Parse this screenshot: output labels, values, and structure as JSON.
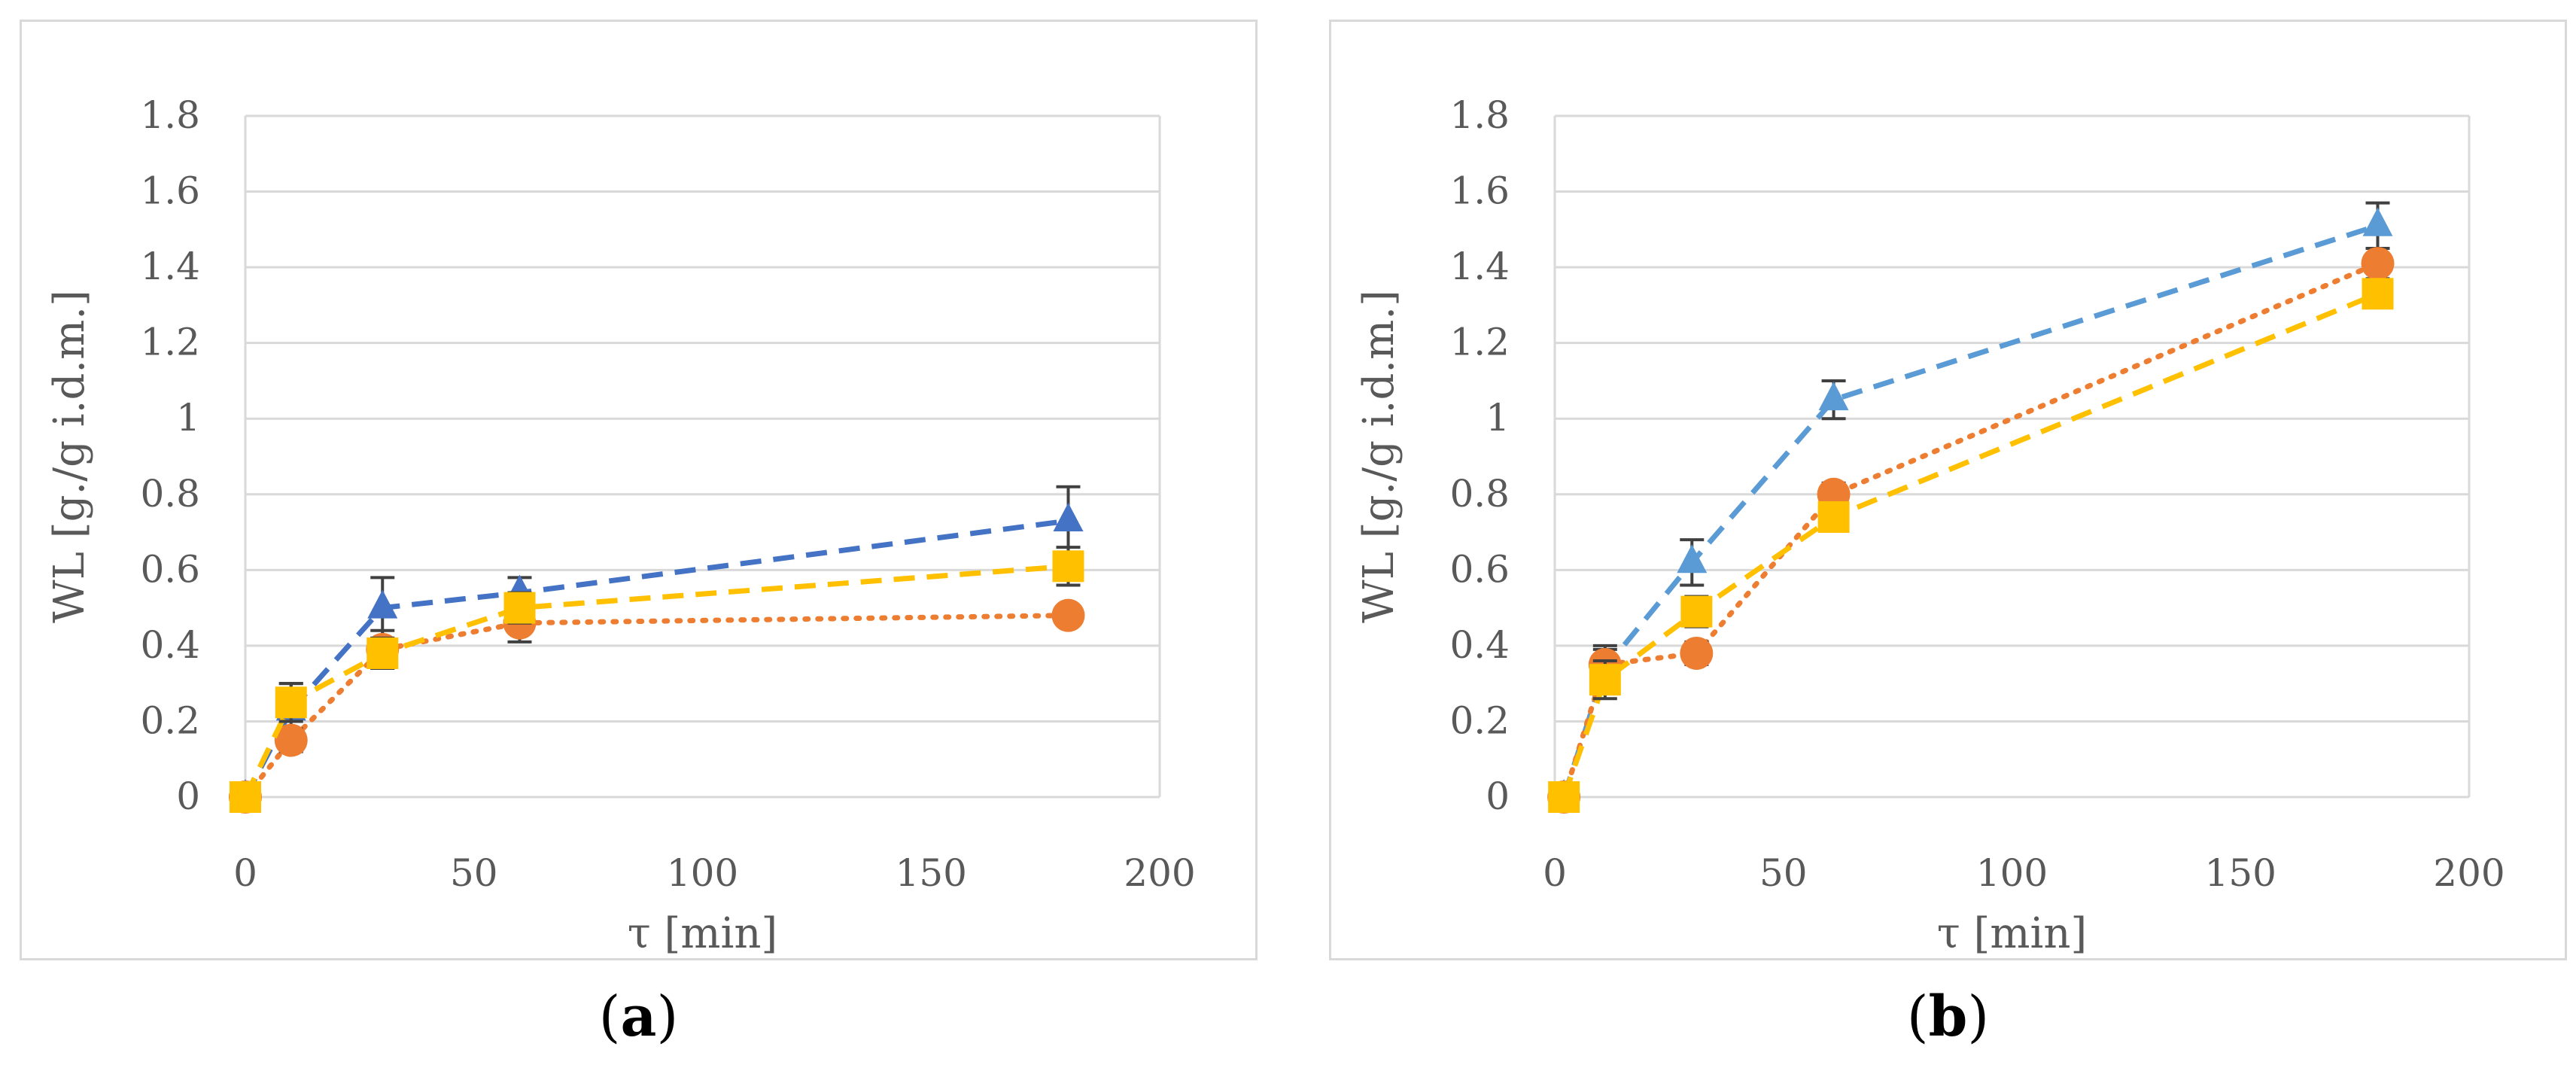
{
  "chart_data": [
    {
      "type": "line",
      "panel_label": "a",
      "caption_prefix": "(",
      "caption_suffix": ")",
      "xlabel": "τ [min]",
      "ylabel": "WL [g./g i.d.m.]",
      "xlim": [
        0,
        200
      ],
      "ylim": [
        0,
        1.8
      ],
      "xticks": [
        "0",
        "50",
        "100",
        "150",
        "200"
      ],
      "yticks": [
        "0",
        "0.2",
        "0.4",
        "0.6",
        "0.8",
        "1",
        "1.2",
        "1.4",
        "1.6",
        "1.8"
      ],
      "grid": true,
      "series": [
        {
          "name": "triangle-series",
          "marker": "triangle",
          "line": "dash",
          "color": "#4472c4",
          "x": [
            0,
            10,
            30,
            60,
            180
          ],
          "y": [
            0,
            0.23,
            0.5,
            0.54,
            0.73
          ],
          "err": [
            0,
            0.07,
            0.08,
            0.04,
            0.09
          ]
        },
        {
          "name": "circle-series",
          "marker": "circle",
          "line": "dot",
          "color": "#ed7d31",
          "x": [
            0,
            10,
            30,
            60,
            180
          ],
          "y": [
            0,
            0.15,
            0.39,
            0.46,
            0.48
          ],
          "err": [
            0,
            0.03,
            0.05,
            0.05,
            0.02
          ]
        },
        {
          "name": "square-series",
          "marker": "square",
          "line": "dash",
          "color": "#ffc000",
          "x": [
            0,
            10,
            30,
            60,
            180
          ],
          "y": [
            0,
            0.25,
            0.38,
            0.5,
            0.61
          ],
          "err": [
            0,
            0.05,
            0.04,
            0.04,
            0.05
          ]
        }
      ]
    },
    {
      "type": "line",
      "panel_label": "b",
      "caption_prefix": "(",
      "caption_suffix": ")",
      "xlabel": "τ [min]",
      "ylabel": "WL [g./g i.d.m.]",
      "xlim": [
        0,
        200
      ],
      "ylim": [
        0,
        1.8
      ],
      "xticks": [
        "0",
        "50",
        "100",
        "150",
        "200"
      ],
      "yticks": [
        "0",
        "0.2",
        "0.4",
        "0.6",
        "0.8",
        "1",
        "1.2",
        "1.4",
        "1.6",
        "1.8"
      ],
      "grid": true,
      "series": [
        {
          "name": "triangle-series",
          "marker": "triangle",
          "line": "dash",
          "color": "#5b9bd5",
          "x": [
            2,
            11,
            30,
            61,
            180
          ],
          "y": [
            0,
            0.34,
            0.62,
            1.05,
            1.51
          ],
          "err": [
            0,
            0.06,
            0.06,
            0.05,
            0.06
          ]
        },
        {
          "name": "circle-series",
          "marker": "circle",
          "line": "dot",
          "color": "#ed7d31",
          "x": [
            2,
            11,
            31,
            61,
            180
          ],
          "y": [
            0,
            0.35,
            0.38,
            0.8,
            1.41
          ],
          "err": [
            0,
            0.04,
            0.03,
            0.03,
            0.04
          ]
        },
        {
          "name": "square-series",
          "marker": "square",
          "line": "dash",
          "color": "#ffc000",
          "x": [
            2,
            11,
            31,
            61,
            180
          ],
          "y": [
            0,
            0.31,
            0.49,
            0.74,
            1.33
          ],
          "err": [
            0,
            0.05,
            0.04,
            0.03,
            0.03
          ]
        }
      ]
    }
  ]
}
